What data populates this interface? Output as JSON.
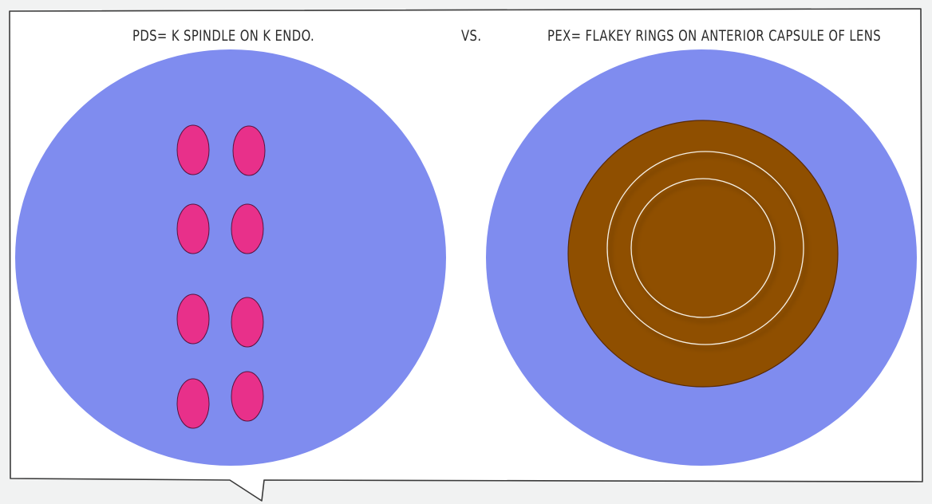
{
  "left_panel": {
    "title": "PDS= K SPINDLE ON K ENDO.",
    "background_color": "#7f8cef",
    "spindle_color": "#e8308a"
  },
  "separator": {
    "label": "VS."
  },
  "right_panel": {
    "title": "PEX= FLAKEY RINGS ON ANTERIOR CAPSULE OF LENS",
    "background_color": "#7f8cef",
    "lens_color": "#8f4f00",
    "ring_color": "#f4f0e6"
  }
}
